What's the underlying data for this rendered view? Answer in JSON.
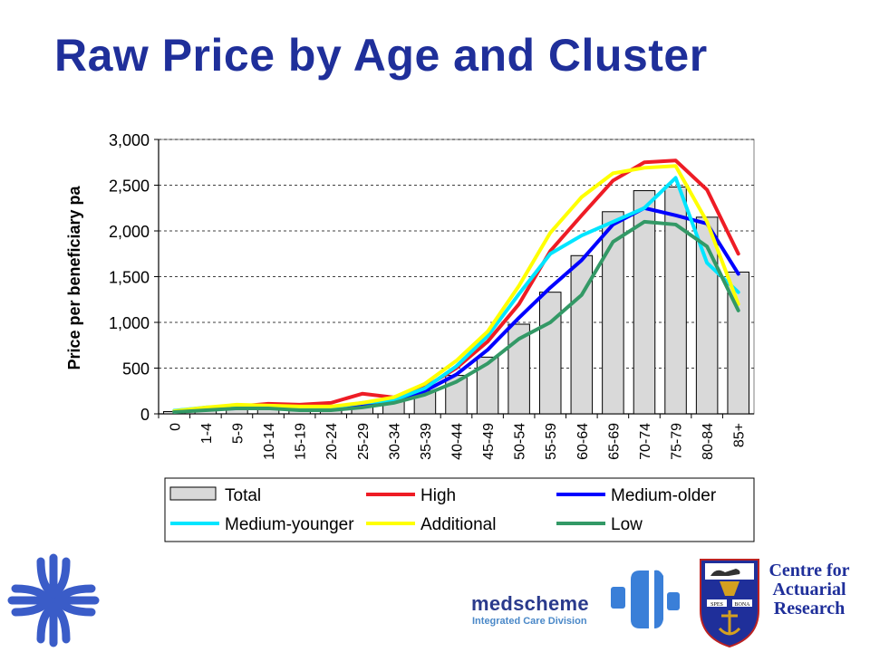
{
  "title": "Raw Price by Age and Cluster",
  "chart_data": {
    "type": "bar",
    "ylabel": "Price per beneficiary pa",
    "xlabel": "",
    "ylim": [
      0,
      3000
    ],
    "yticks": [
      0,
      500,
      1000,
      1500,
      2000,
      2500,
      3000
    ],
    "ytick_labels": [
      "0",
      "500",
      "1,000",
      "1,500",
      "2,000",
      "2,500",
      "3,000"
    ],
    "grid": "horizontal dashed",
    "categories": [
      "0",
      "1-4",
      "5-9",
      "10-14",
      "15-19",
      "20-24",
      "25-29",
      "30-34",
      "35-39",
      "40-44",
      "45-49",
      "50-54",
      "55-59",
      "60-64",
      "65-69",
      "70-74",
      "75-79",
      "80-84",
      "85+"
    ],
    "bar_series": {
      "name": "Total",
      "color": "#d9d9d9",
      "values": [
        25,
        55,
        65,
        75,
        60,
        60,
        110,
        140,
        250,
        420,
        620,
        980,
        1330,
        1730,
        2210,
        2440,
        2480,
        2150,
        1550
      ]
    },
    "series": [
      {
        "name": "High",
        "color": "#ee1c25",
        "values": [
          30,
          60,
          80,
          110,
          100,
          120,
          220,
          180,
          290,
          500,
          790,
          1200,
          1780,
          2170,
          2550,
          2750,
          2770,
          2450,
          1750
        ]
      },
      {
        "name": "Medium-older",
        "color": "#0000ff",
        "values": [
          25,
          50,
          60,
          70,
          60,
          60,
          100,
          130,
          250,
          430,
          700,
          1050,
          1380,
          1680,
          2070,
          2250,
          2170,
          2080,
          1530
        ]
      },
      {
        "name": "Medium-younger",
        "color": "#00e5ff",
        "values": [
          35,
          70,
          80,
          80,
          70,
          70,
          120,
          150,
          280,
          520,
          850,
          1310,
          1750,
          1950,
          2100,
          2250,
          2580,
          1650,
          1330
        ]
      },
      {
        "name": "Additional",
        "color": "#ffff00",
        "values": [
          30,
          70,
          100,
          90,
          80,
          80,
          120,
          180,
          330,
          580,
          900,
          1400,
          1980,
          2370,
          2630,
          2690,
          2710,
          2100,
          1200
        ]
      },
      {
        "name": "Low",
        "color": "#339966",
        "values": [
          20,
          40,
          60,
          60,
          40,
          40,
          70,
          120,
          210,
          350,
          550,
          820,
          1000,
          1300,
          1880,
          2100,
          2070,
          1830,
          1130
        ]
      }
    ],
    "legend_position": "bottom"
  },
  "legend": [
    {
      "label": "Total",
      "kind": "bar",
      "color": "#d9d9d9"
    },
    {
      "label": "High",
      "kind": "line",
      "color": "#ee1c25"
    },
    {
      "label": "Medium-older",
      "kind": "line",
      "color": "#0000ff"
    },
    {
      "label": "Medium-younger",
      "kind": "line",
      "color": "#00e5ff"
    },
    {
      "label": "Additional",
      "kind": "line",
      "color": "#ffff00"
    },
    {
      "label": "Low",
      "kind": "line",
      "color": "#339966"
    }
  ],
  "logos": {
    "medscheme": "medscheme",
    "medscheme_sub": "Integrated Care Division",
    "car_lines": [
      "Centre for",
      "Actuarial",
      "Research"
    ],
    "crest_motto_left": "SPES",
    "crest_motto_right": "BONA",
    "cross_icon": "medical-cross-logo-icon",
    "crest_icon": "university-crest-icon"
  },
  "colors": {
    "title": "#1f2f9a",
    "logo_blue": "#3a5cc8",
    "legend_border": "#000000"
  }
}
